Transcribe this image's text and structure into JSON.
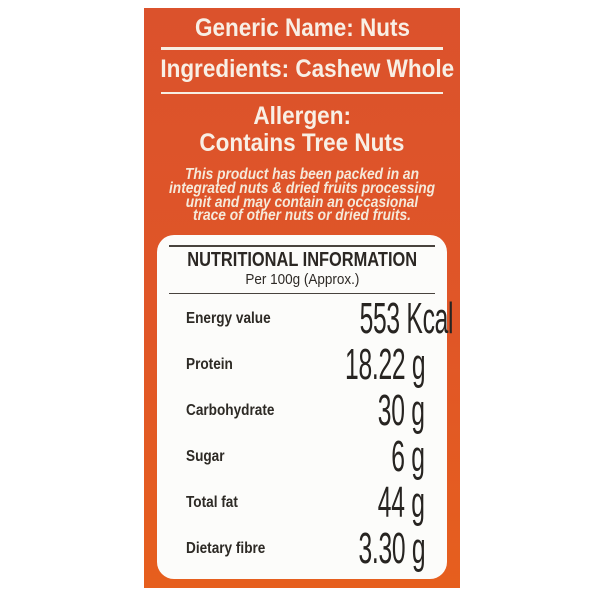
{
  "label": {
    "generic_name": "Generic Name: Nuts",
    "ingredients": "Ingredients: Cashew Whole",
    "allergen_title": "Allergen:",
    "allergen_value": "Contains Tree Nuts",
    "disclaimer_lines": [
      "This product has been packed in an",
      "integrated nuts & dried fruits processing",
      "unit and may contain an occasional",
      "trace of other nuts or dried fruits."
    ]
  },
  "nutrition": {
    "title": "NUTRITIONAL INFORMATION",
    "subtitle": "Per 100g (Approx.)",
    "rows": [
      {
        "label": "Energy value",
        "value": "553 Kcal"
      },
      {
        "label": "Protein",
        "value": "18.22 g"
      },
      {
        "label": "Carbohydrate",
        "value": "30 g"
      },
      {
        "label": "Sugar",
        "value": "6 g"
      },
      {
        "label": "Total fat",
        "value": "44 g"
      },
      {
        "label": "Dietary fibre",
        "value": "3.30 g"
      }
    ]
  },
  "colors": {
    "label_orange_top": "#db522c",
    "label_orange_bottom": "#e65f1e",
    "label_text_cream": "#f8efe5",
    "panel_background": "#fcfcfa",
    "panel_text_dark": "#2b2723",
    "panel_rule": "#48433d"
  }
}
